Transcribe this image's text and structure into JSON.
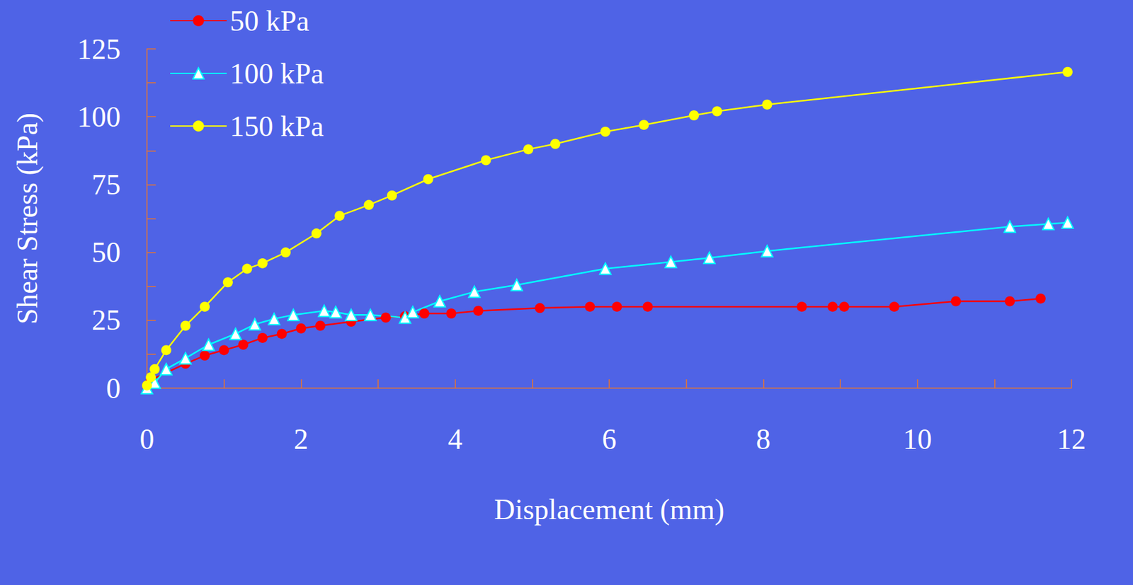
{
  "chart_data": {
    "type": "line",
    "x_label": "Displacement (mm)",
    "y_label": "Shear Stress (kPa)",
    "xlim": [
      0,
      12
    ],
    "xticks": [
      0,
      2,
      4,
      6,
      8,
      10,
      12
    ],
    "ylim": [
      0,
      125
    ],
    "yticks": [
      0,
      25,
      50,
      75,
      100,
      125
    ],
    "grid": false,
    "legend": "top-left",
    "series": [
      {
        "name": "50 kPa",
        "color": "#FF0000",
        "marker": "circle",
        "x": [
          0,
          0.05,
          0.5,
          0.75,
          1,
          1.25,
          1.5,
          1.75,
          2,
          2.25,
          2.65,
          3.1,
          3.35,
          3.6,
          3.95,
          4.3,
          5.1,
          5.75,
          6.1,
          6.5,
          8.5,
          8.9,
          9.05,
          9.7,
          10.5,
          11.2,
          11.6
        ],
        "values": [
          1,
          3,
          9,
          12,
          14,
          16,
          18.5,
          20,
          22,
          23,
          24.5,
          26,
          26.5,
          27.5,
          27.5,
          28.5,
          29.5,
          30,
          30,
          30,
          30,
          30,
          30,
          30,
          32,
          32,
          33
        ]
      },
      {
        "name": "100 kPa",
        "color": "#00FFFF",
        "marker": "triangle_open",
        "x": [
          0,
          0.1,
          0.25,
          0.5,
          0.8,
          1.15,
          1.4,
          1.65,
          1.9,
          2.3,
          2.45,
          2.65,
          2.9,
          3.35,
          3.45,
          3.8,
          4.25,
          4.8,
          5.95,
          6.8,
          7.3,
          8.05,
          11.2,
          11.7,
          11.95
        ],
        "values": [
          0,
          2,
          7,
          11,
          16,
          20,
          23.5,
          25.5,
          27,
          28.5,
          28,
          27,
          27,
          26,
          28,
          32,
          35.5,
          38,
          44,
          46.5,
          48,
          50.5,
          59.5,
          60.5,
          61
        ]
      },
      {
        "name": "150 kPa",
        "color": "#FFFF00",
        "marker": "circle",
        "x": [
          0,
          0.05,
          0.1,
          0.25,
          0.5,
          0.75,
          1.05,
          1.3,
          1.5,
          1.8,
          2.2,
          2.5,
          2.88,
          3.18,
          3.65,
          4.4,
          4.95,
          5.3,
          5.95,
          6.45,
          7.1,
          7.4,
          8.05,
          11.95
        ],
        "values": [
          1,
          4,
          7,
          14,
          23,
          30,
          39,
          44,
          46,
          50,
          57,
          63.5,
          67.5,
          71,
          77,
          84,
          88,
          90,
          94.5,
          97,
          100.5,
          102,
          104.5,
          116.5
        ]
      }
    ]
  }
}
